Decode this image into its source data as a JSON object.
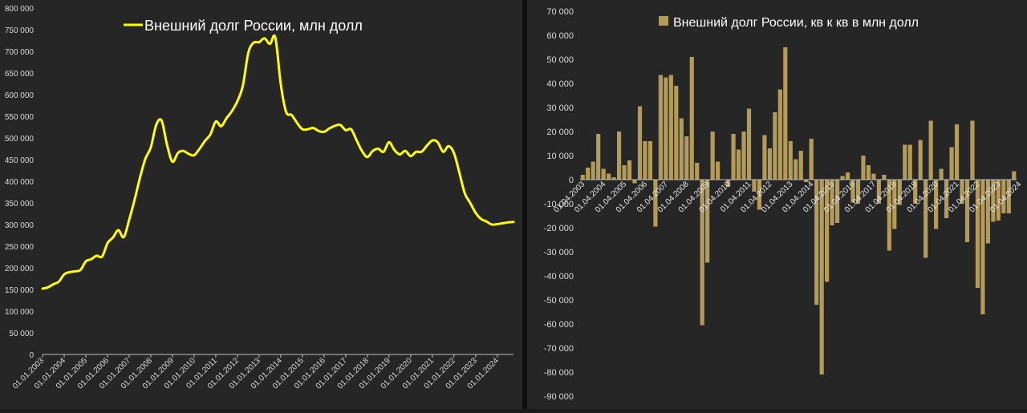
{
  "chart_data": [
    {
      "type": "line",
      "title": "",
      "xlabel": "",
      "ylabel": "",
      "ylim": [
        0,
        800000
      ],
      "grid": false,
      "legend": {
        "placement": "top",
        "entries": [
          {
            "label": "Внешний долг России, млн долл",
            "color": "#ffff00"
          }
        ]
      },
      "y_ticks": [
        "0",
        "50 000",
        "100 000",
        "150 000",
        "200 000",
        "250 000",
        "300 000",
        "350 000",
        "400 000",
        "450 000",
        "500 000",
        "550 000",
        "600 000",
        "650 000",
        "700 000",
        "750 000",
        "800 000"
      ],
      "y_tick_values": [
        0,
        50000,
        100000,
        150000,
        200000,
        250000,
        300000,
        350000,
        400000,
        450000,
        500000,
        550000,
        600000,
        650000,
        700000,
        750000,
        800000
      ],
      "x_ticks": [
        "01.01.2003",
        "01.01.2004",
        "01.01.2005",
        "01.01.2006",
        "01.01.2007",
        "01.01.2008",
        "01.01.2009",
        "01.01.2010",
        "01.01.2011",
        "01.01.2012",
        "01.01.2013",
        "01.01.2014",
        "01.01.2015",
        "01.01.2016",
        "01.01.2017",
        "01.01.2018",
        "01.01.2019",
        "01.01.2020",
        "01.01.2021",
        "01.01.2022",
        "01.01.2023",
        "01.01.2024"
      ],
      "x_range": [
        2003.0,
        2024.75
      ],
      "series": [
        {
          "name": "Внешний долг России, млн долл",
          "color": "#ffff00",
          "x": [
            2003.0,
            2003.25,
            2003.5,
            2003.75,
            2004.0,
            2004.25,
            2004.5,
            2004.75,
            2005.0,
            2005.25,
            2005.5,
            2005.75,
            2006.0,
            2006.25,
            2006.5,
            2006.75,
            2007.0,
            2007.25,
            2007.5,
            2007.75,
            2008.0,
            2008.25,
            2008.5,
            2008.75,
            2009.0,
            2009.25,
            2009.5,
            2009.75,
            2010.0,
            2010.25,
            2010.5,
            2010.75,
            2011.0,
            2011.25,
            2011.5,
            2011.75,
            2012.0,
            2012.25,
            2012.5,
            2012.75,
            2013.0,
            2013.25,
            2013.5,
            2013.75,
            2014.0,
            2014.25,
            2014.5,
            2014.75,
            2015.0,
            2015.25,
            2015.5,
            2015.75,
            2016.0,
            2016.25,
            2016.5,
            2016.75,
            2017.0,
            2017.25,
            2017.5,
            2017.75,
            2018.0,
            2018.25,
            2018.5,
            2018.75,
            2019.0,
            2019.25,
            2019.5,
            2019.75,
            2020.0,
            2020.25,
            2020.5,
            2020.75,
            2021.0,
            2021.25,
            2021.5,
            2021.75,
            2022.0,
            2022.25,
            2022.5,
            2022.75,
            2023.0,
            2023.25,
            2023.5,
            2023.75,
            2024.0,
            2024.25,
            2024.5,
            2024.75
          ],
          "y": [
            152000,
            155000,
            162000,
            168000,
            185000,
            190000,
            192000,
            195000,
            215000,
            220000,
            228000,
            226000,
            257000,
            270000,
            287000,
            271000,
            311000,
            357000,
            408000,
            452000,
            478000,
            530000,
            540000,
            484000,
            445000,
            465000,
            470000,
            463000,
            460000,
            475000,
            493000,
            508000,
            538000,
            527000,
            546000,
            562000,
            585000,
            620000,
            696000,
            720000,
            721000,
            730000,
            717000,
            732000,
            625000,
            560000,
            553000,
            535000,
            520000,
            520000,
            523000,
            516000,
            514000,
            522000,
            528000,
            530000,
            518000,
            520000,
            495000,
            470000,
            456000,
            470000,
            475000,
            468000,
            490000,
            472000,
            462000,
            470000,
            458000,
            468000,
            468000,
            482000,
            494000,
            490000,
            468000,
            481000,
            465000,
            420000,
            372000,
            350000,
            327000,
            313000,
            307000,
            300000,
            301000,
            303000,
            305000,
            306000
          ]
        }
      ]
    },
    {
      "type": "bar",
      "title": "",
      "xlabel": "",
      "ylabel": "",
      "ylim": [
        -90000,
        70000
      ],
      "grid": false,
      "legend": {
        "placement": "top",
        "entries": [
          {
            "label": "Внешний долг России, кв к кв в млн долл",
            "color": "#b39b5a"
          }
        ]
      },
      "y_ticks": [
        "70 000",
        "60 000",
        "50 000",
        "40 000",
        "30 000",
        "20 000",
        "10 000",
        "0",
        "-10 000",
        "-20 000",
        "-30 000",
        "-40 000",
        "-50 000",
        "-60 000",
        "-70 000",
        "-80 000",
        "-90 000"
      ],
      "y_tick_values": [
        70000,
        60000,
        50000,
        40000,
        30000,
        20000,
        10000,
        0,
        -10000,
        -20000,
        -30000,
        -40000,
        -50000,
        -60000,
        -70000,
        -80000,
        -90000
      ],
      "x_ticks": [
        "01.04.2003",
        "01.04.2004",
        "01.04.2005",
        "01.04.2006",
        "01.04.2007",
        "01.04.2008",
        "01.04.2009",
        "01.04.2010",
        "01.04.2011",
        "01.04.2012",
        "01.04.2013",
        "01.04.2014",
        "01.04.2015",
        "01.04.2016",
        "01.04.2017",
        "01.04.2018",
        "01.04.2019",
        "01.04.2020",
        "01.04.2021",
        "01.04.2022",
        "01.04.2023",
        "01.04.2024"
      ],
      "series": [
        {
          "name": "Внешний долг России, кв к кв в млн долл",
          "color": "#b39b5a",
          "values": [
            2000,
            5000,
            7500,
            19000,
            4500,
            2500,
            1000,
            20000,
            6000,
            8000,
            -1500,
            30500,
            16000,
            16000,
            -19500,
            43500,
            42500,
            43500,
            39000,
            25500,
            18000,
            51000,
            7000,
            -60500,
            -34500,
            20000,
            7500,
            0,
            -3000,
            19000,
            12500,
            20000,
            29500,
            -5000,
            -12500,
            18500,
            13000,
            28000,
            37500,
            55000,
            16000,
            8500,
            12000,
            -1000,
            17000,
            -52000,
            -81000,
            -42500,
            -19000,
            -18000,
            1500,
            3000,
            -9500,
            -10000,
            10000,
            6000,
            2500,
            -10000,
            2000,
            -29500,
            -20500,
            -10500,
            14500,
            14500,
            -10000,
            16500,
            -32500,
            24500,
            -20500,
            4500,
            -16000,
            13500,
            23000,
            -10000,
            -26000,
            24500,
            -45000,
            -56000,
            -26500,
            -17500,
            -17000,
            -14000,
            -14000,
            3500
          ]
        }
      ]
    }
  ]
}
